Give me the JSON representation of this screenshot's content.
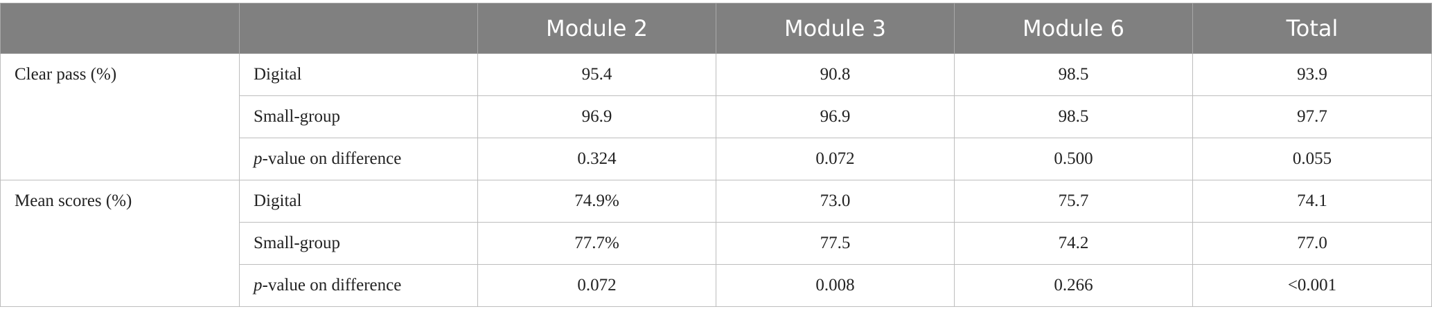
{
  "table": {
    "header": [
      "",
      "",
      "Module 2",
      "Module 3",
      "Module 6",
      "Total"
    ],
    "groups": [
      {
        "name": "Clear pass (%)",
        "rows": [
          {
            "label": "Digital",
            "values": [
              "95.4",
              "90.8",
              "98.5",
              "93.9"
            ]
          },
          {
            "label": "Small-group",
            "values": [
              "96.9",
              "96.9",
              "98.5",
              "97.7"
            ]
          },
          {
            "label": "p-value on difference",
            "values": [
              "0.324",
              "0.072",
              "0.500",
              "0.055"
            ]
          }
        ]
      },
      {
        "name": "Mean scores (%)",
        "rows": [
          {
            "label": "Digital",
            "values": [
              "74.9%",
              "73.0",
              "75.7",
              "74.1"
            ]
          },
          {
            "label": "Small-group",
            "values": [
              "77.7%",
              "77.5",
              "74.2",
              "77.0"
            ]
          },
          {
            "label": "p-value on difference",
            "values": [
              "0.072",
              "0.008",
              "0.266",
              "<0.001"
            ]
          }
        ]
      }
    ]
  }
}
